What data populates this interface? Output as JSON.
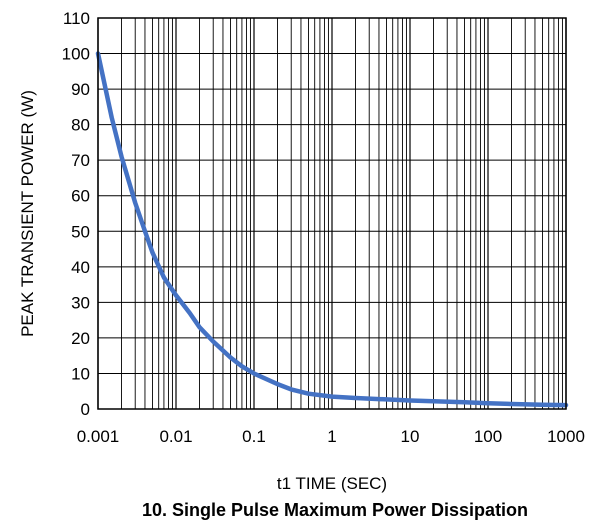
{
  "chart_data": {
    "type": "line",
    "title": "10. Single Pulse Maximum Power Dissipation",
    "xlabel": "t1 TIME (SEC)",
    "ylabel": "PEAK TRANSIENT POWER (W)",
    "x_scale": "log",
    "xlim": [
      0.001,
      1000
    ],
    "ylim": [
      0,
      110
    ],
    "x_ticks": [
      "0.001",
      "0.01",
      "0.1",
      "1",
      "10",
      "100",
      "1000"
    ],
    "x_tick_values": [
      0.001,
      0.01,
      0.1,
      1,
      10,
      100,
      1000
    ],
    "y_ticks": [
      0,
      10,
      20,
      30,
      40,
      50,
      60,
      70,
      80,
      90,
      100,
      110
    ],
    "grid": true,
    "line_color": "#4472c4",
    "series": [
      {
        "x": [
          0.001,
          0.0015,
          0.002,
          0.003,
          0.004,
          0.005,
          0.007,
          0.01,
          0.015,
          0.02,
          0.03,
          0.05,
          0.07,
          0.1,
          0.2,
          0.3,
          0.5,
          1,
          2,
          5,
          10,
          20,
          50,
          100,
          200,
          500,
          1000
        ],
        "values": [
          100,
          82,
          71,
          58,
          50,
          44,
          37,
          32,
          27,
          23,
          19,
          14.5,
          12,
          10,
          7,
          5.5,
          4.3,
          3.5,
          3.1,
          2.7,
          2.4,
          2.2,
          1.9,
          1.6,
          1.4,
          1.2,
          1.1
        ]
      }
    ]
  }
}
